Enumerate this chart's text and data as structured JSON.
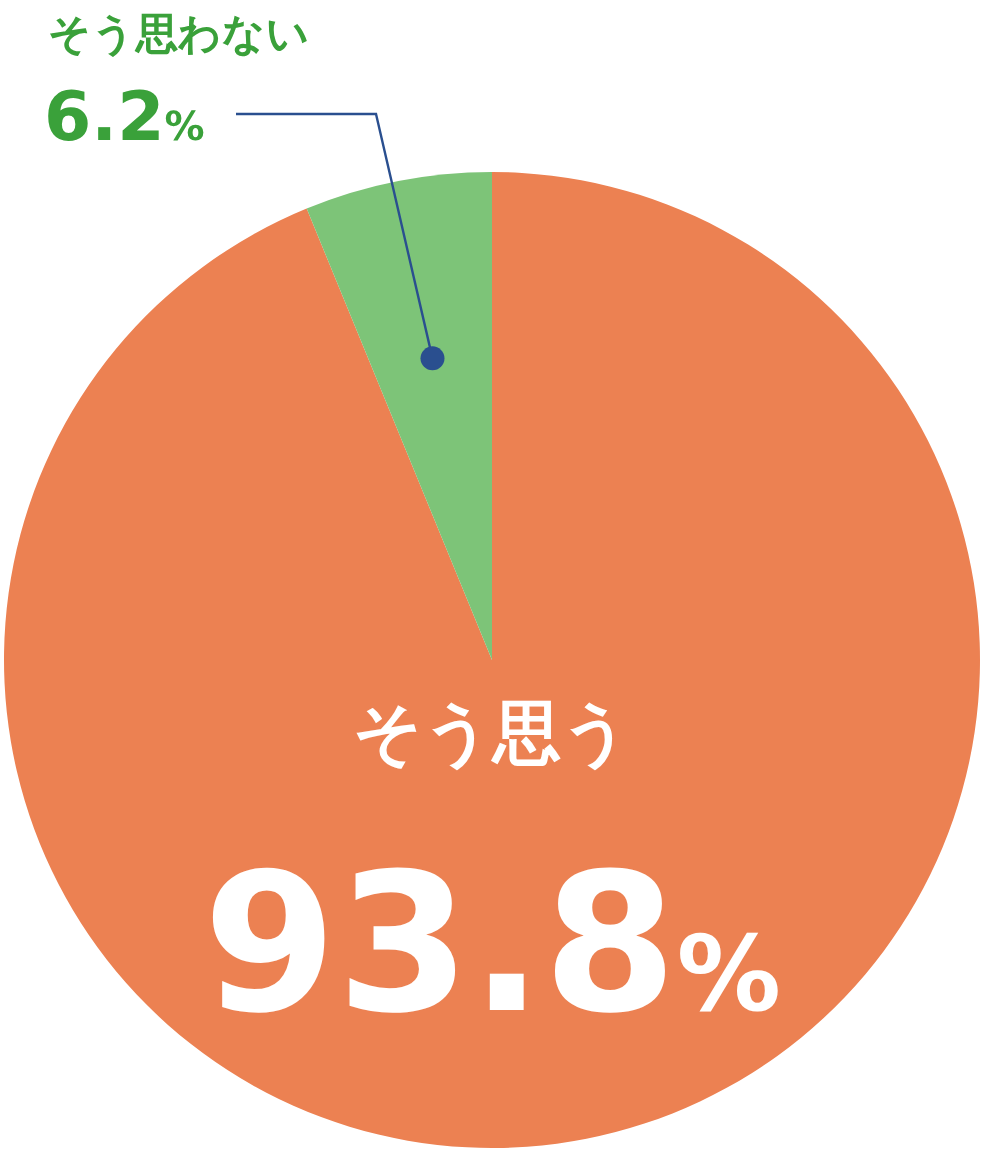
{
  "chart_data": {
    "type": "pie",
    "categories": [
      "そう思う",
      "そう思わない"
    ],
    "values": [
      93.8,
      6.2
    ],
    "colors": [
      "#ec8152",
      "#7dc478"
    ],
    "value_labels": [
      "93.8%",
      "6.2%"
    ]
  }
}
